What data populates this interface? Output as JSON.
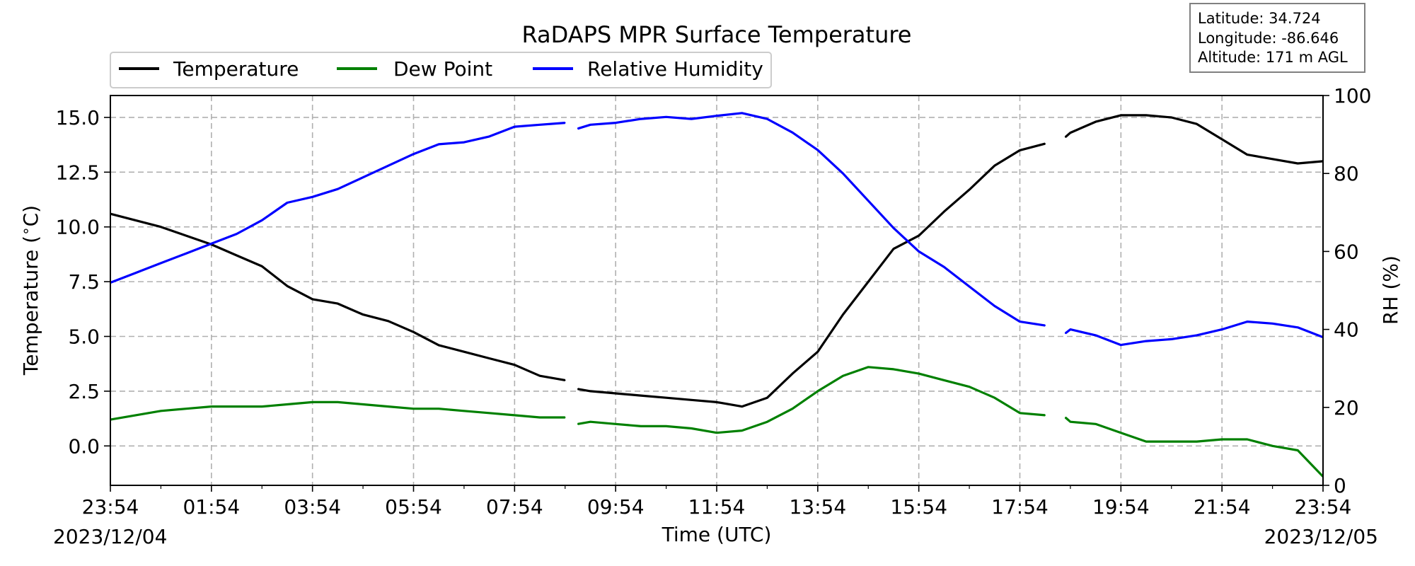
{
  "chart_data": {
    "type": "line",
    "title": "RaDAPS MPR Surface Temperature",
    "xlabel": "Time (UTC)",
    "ylabel_left": "Temperature ($^\\circ$C)",
    "ylabel_left_text": "Temperature (",
    "ylabel_left_deg": "∘",
    "ylabel_left_unit": "C)",
    "ylabel_right": "RH (%)",
    "x_tick_labels": [
      "23:54",
      "01:54",
      "03:54",
      "05:54",
      "07:54",
      "09:54",
      "11:54",
      "13:54",
      "15:54",
      "17:54",
      "19:54",
      "21:54",
      "23:54"
    ],
    "x_range_hours": [
      0,
      24
    ],
    "date_start": "2023/12/04",
    "date_end": "2023/12/05",
    "ylim_left": [
      -1.8,
      16.0
    ],
    "ylim_right": [
      0,
      100
    ],
    "yticks_left": [
      "0.0",
      "2.5",
      "5.0",
      "7.5",
      "10.0",
      "12.5",
      "15.0"
    ],
    "yticks_right": [
      "0",
      "20",
      "40",
      "60",
      "80",
      "100"
    ],
    "grid": true,
    "legend_position": "top-left",
    "gaps_hours": [
      [
        9.0,
        9.25
      ],
      [
        18.5,
        18.9
      ]
    ],
    "series": [
      {
        "name": "Temperature",
        "color": "#000000",
        "axis": "left",
        "x": [
          0.0,
          0.5,
          1.0,
          1.5,
          2.0,
          2.5,
          3.0,
          3.5,
          4.0,
          4.5,
          5.0,
          5.5,
          6.0,
          6.5,
          7.0,
          7.5,
          8.0,
          8.5,
          9.0,
          9.25,
          9.5,
          10.0,
          10.5,
          11.0,
          11.5,
          12.0,
          12.5,
          13.0,
          13.5,
          14.0,
          14.5,
          15.0,
          15.5,
          16.0,
          16.5,
          17.0,
          17.5,
          18.0,
          18.5,
          18.9,
          19.0,
          19.5,
          20.0,
          20.5,
          21.0,
          21.5,
          22.0,
          22.5,
          23.0,
          23.5,
          24.0
        ],
        "values": [
          10.6,
          10.3,
          10.0,
          9.6,
          9.2,
          8.7,
          8.2,
          7.3,
          6.7,
          6.5,
          6.0,
          5.7,
          5.2,
          4.6,
          4.3,
          4.0,
          3.7,
          3.2,
          3.0,
          2.6,
          2.5,
          2.4,
          2.3,
          2.2,
          2.1,
          2.0,
          1.8,
          2.2,
          3.3,
          4.3,
          6.0,
          7.5,
          9.0,
          9.6,
          10.7,
          11.7,
          12.8,
          13.5,
          13.8,
          14.1,
          14.3,
          14.8,
          15.1,
          15.1,
          15.0,
          14.7,
          14.0,
          13.3,
          13.1,
          12.9,
          13.0
        ]
      },
      {
        "name": "Dew Point",
        "color": "#008000",
        "axis": "left",
        "x": [
          0.0,
          0.5,
          1.0,
          1.5,
          2.0,
          2.5,
          3.0,
          3.5,
          4.0,
          4.5,
          5.0,
          5.5,
          6.0,
          6.5,
          7.0,
          7.5,
          8.0,
          8.5,
          9.0,
          9.25,
          9.5,
          10.0,
          10.5,
          11.0,
          11.5,
          12.0,
          12.5,
          13.0,
          13.5,
          14.0,
          14.5,
          15.0,
          15.5,
          16.0,
          16.5,
          17.0,
          17.5,
          18.0,
          18.5,
          18.9,
          19.0,
          19.5,
          20.0,
          20.5,
          21.0,
          21.5,
          22.0,
          22.5,
          23.0,
          23.5,
          24.0
        ],
        "values": [
          1.2,
          1.4,
          1.6,
          1.7,
          1.8,
          1.8,
          1.8,
          1.9,
          2.0,
          2.0,
          1.9,
          1.8,
          1.7,
          1.7,
          1.6,
          1.5,
          1.4,
          1.3,
          1.3,
          1.0,
          1.1,
          1.0,
          0.9,
          0.9,
          0.8,
          0.6,
          0.7,
          1.1,
          1.7,
          2.5,
          3.2,
          3.6,
          3.5,
          3.3,
          3.0,
          2.7,
          2.2,
          1.5,
          1.4,
          1.3,
          1.1,
          1.0,
          0.6,
          0.2,
          0.2,
          0.2,
          0.3,
          0.3,
          0.0,
          -0.2,
          -1.4
        ]
      },
      {
        "name": "Relative Humidity",
        "color": "#0000ff",
        "axis": "right",
        "x": [
          0.0,
          0.5,
          1.0,
          1.5,
          2.0,
          2.5,
          3.0,
          3.5,
          4.0,
          4.5,
          5.0,
          5.5,
          6.0,
          6.5,
          7.0,
          7.5,
          8.0,
          8.5,
          9.0,
          9.25,
          9.5,
          10.0,
          10.5,
          11.0,
          11.5,
          12.0,
          12.5,
          13.0,
          13.5,
          14.0,
          14.5,
          15.0,
          15.5,
          16.0,
          16.5,
          17.0,
          17.5,
          18.0,
          18.5,
          18.9,
          19.0,
          19.5,
          20.0,
          20.5,
          21.0,
          21.5,
          22.0,
          22.5,
          23.0,
          23.5,
          24.0
        ],
        "values": [
          52.0,
          54.5,
          57.0,
          59.5,
          62.0,
          64.5,
          68.0,
          72.5,
          74.0,
          76.0,
          79.0,
          82.0,
          85.0,
          87.5,
          88.0,
          89.5,
          92.0,
          92.5,
          93.0,
          91.5,
          92.5,
          93.0,
          94.0,
          94.5,
          94.0,
          94.8,
          95.5,
          94.0,
          90.5,
          86.0,
          80.0,
          73.0,
          66.0,
          60.0,
          56.0,
          51.0,
          46.0,
          42.0,
          41.0,
          39.0,
          40.0,
          38.5,
          36.0,
          37.0,
          37.5,
          38.5,
          40.0,
          42.0,
          41.5,
          40.5,
          38.0
        ]
      }
    ],
    "annotation_box": {
      "latitude": "Latitude: 34.724",
      "longitude": "Longitude: -86.646",
      "altitude": "Altitude: 171 m AGL"
    }
  }
}
